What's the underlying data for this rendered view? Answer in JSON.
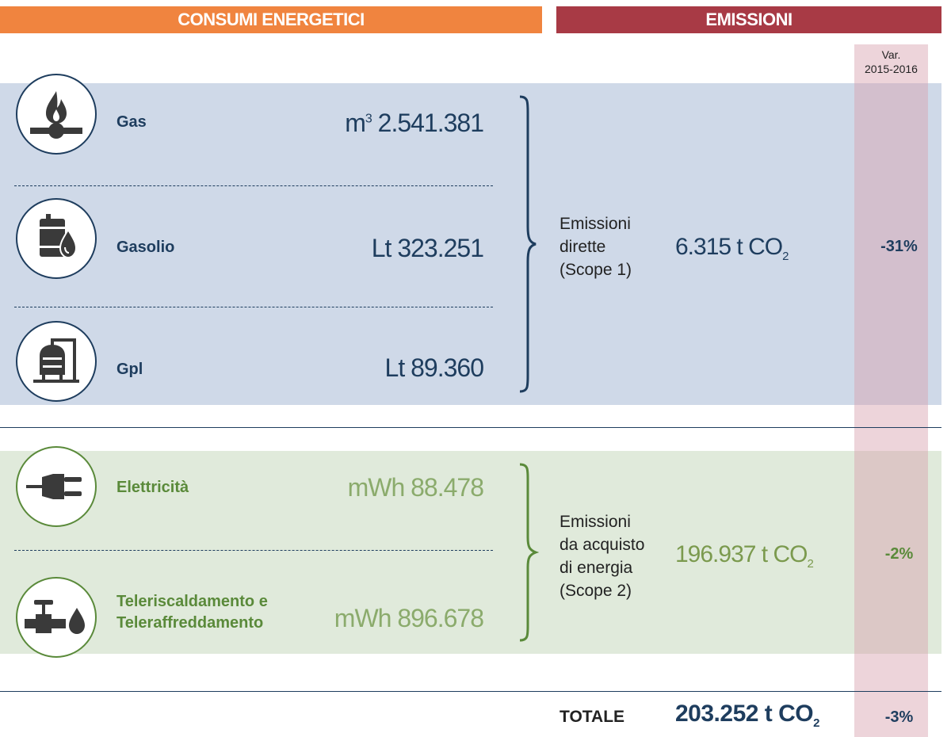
{
  "headers": {
    "consumi": "CONSUMI ENERGETICI",
    "emissioni": "EMISSIONI",
    "var_line1": "Var.",
    "var_line2": "2015-2016"
  },
  "scope1": {
    "items": [
      {
        "label": "Gas",
        "unit": "m",
        "unit_sup": "3",
        "value": "2.541.381",
        "icon": "gas-flame-pipe-icon"
      },
      {
        "label": "Gasolio",
        "unit": "Lt",
        "unit_sup": "",
        "value": "323.251",
        "icon": "oil-barrel-drop-icon"
      },
      {
        "label": "Gpl",
        "unit": "Lt",
        "unit_sup": "",
        "value": "89.360",
        "icon": "lpg-tank-icon"
      }
    ],
    "emission_label": [
      "Emissioni",
      "dirette",
      "(Scope 1)"
    ],
    "emission_value": "6.315 t CO",
    "emission_sub": "2",
    "variation": "-31%"
  },
  "scope2": {
    "items": [
      {
        "label_lines": [
          "Elettricità"
        ],
        "unit": "mWh",
        "value": "88.478",
        "icon": "electric-plug-icon"
      },
      {
        "label_lines": [
          "Teleriscaldamento e",
          "Teleraffreddamento"
        ],
        "unit": "mWh",
        "value": "896.678",
        "icon": "valve-pipe-drop-icon"
      }
    ],
    "emission_label": [
      "Emissioni",
      "da acquisto",
      "di energia",
      "(Scope 2)"
    ],
    "emission_value": "196.937 t CO",
    "emission_sub": "2",
    "variation": "-2%"
  },
  "total": {
    "label": "TOTALE",
    "value": "203.252 t CO",
    "sub": "2",
    "variation": "-3%"
  },
  "colors": {
    "consumi_header": "#f0843f",
    "emissioni_header": "#a83a45",
    "scope1_band": "#cfd9e8",
    "scope2_band": "#e0eadb",
    "navy": "#1e3d5e",
    "green": "#5a8a3a"
  }
}
